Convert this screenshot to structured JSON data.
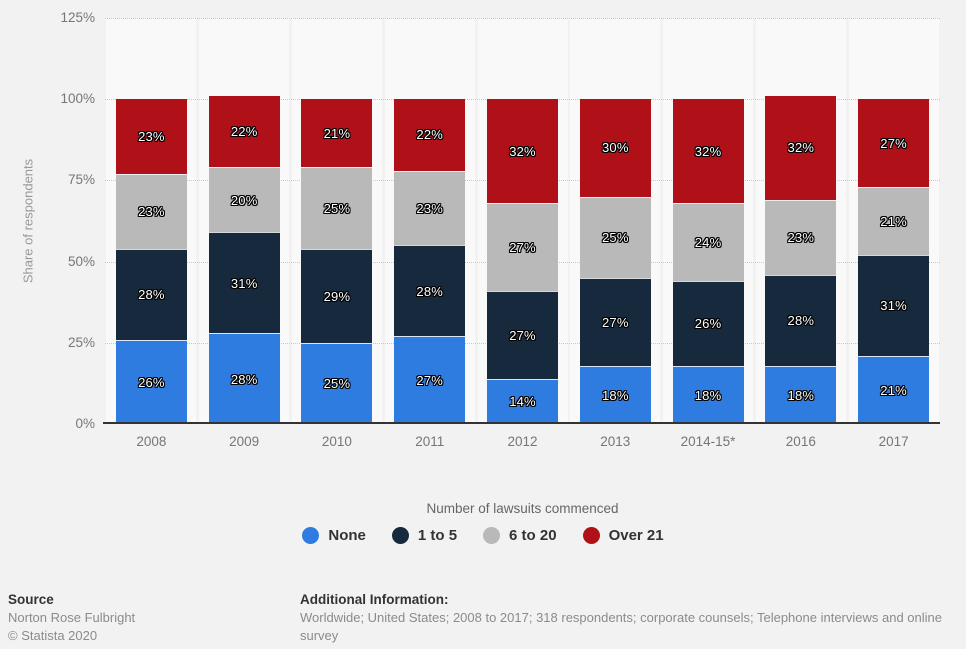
{
  "chart_data": {
    "type": "bar",
    "variant": "stacked-column",
    "title": "",
    "categories": [
      "2008",
      "2009",
      "2010",
      "2011",
      "2012",
      "2013",
      "2014-15*",
      "2016",
      "2017"
    ],
    "series": [
      {
        "name": "None",
        "color": "#2e7ce0",
        "values": [
          26,
          28,
          25,
          27,
          14,
          18,
          18,
          18,
          21
        ]
      },
      {
        "name": "1 to 5",
        "color": "#16293d",
        "values": [
          28,
          31,
          29,
          28,
          27,
          27,
          26,
          28,
          31
        ]
      },
      {
        "name": "6 to 20",
        "color": "#b9b9b9",
        "values": [
          23,
          20,
          25,
          23,
          27,
          25,
          24,
          23,
          21
        ]
      },
      {
        "name": "Over 21",
        "color": "#b01118",
        "values": [
          23,
          22,
          21,
          22,
          32,
          30,
          32,
          32,
          27
        ]
      }
    ],
    "value_suffix": "%",
    "ylabel": "Share of respondents",
    "ylim": [
      0,
      125
    ],
    "yticks": [
      0,
      25,
      50,
      75,
      100,
      125
    ],
    "ytick_suffix": "%",
    "grid": "horizontal-dotted",
    "legend_title": "Number of lawsuits commenced",
    "legend_position": "bottom",
    "colors": {
      "background": "#f2f2f2",
      "column_stripe": "#f9f9f9",
      "axis_line": "#333333",
      "tick_text": "#767676"
    }
  },
  "footer": {
    "source_label": "Source",
    "source_name": "Norton Rose Fulbright",
    "copyright": "© Statista 2020",
    "additional_label": "Additional Information:",
    "additional_text": "Worldwide; United States; 2008 to 2017; 318 respondents; corporate counsels; Telephone interviews and online survey"
  }
}
